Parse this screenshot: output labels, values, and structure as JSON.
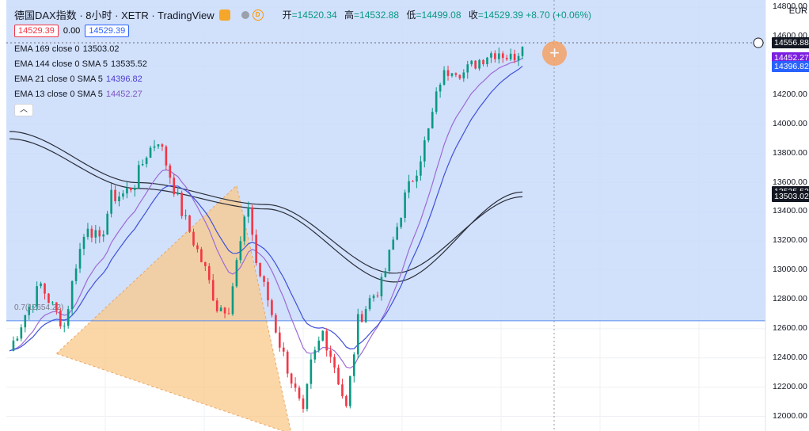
{
  "header": {
    "title": "德国DAX指数 · 8小时 · XETR · TradingView",
    "ohlc": {
      "open_label": "开",
      "open": "=14520.34",
      "high_label": "高",
      "high": "=14532.88",
      "low_label": "低",
      "low": "=14499.08",
      "close_label": "收",
      "close": "=14529.39",
      "change": "+8.70 (+0.06%)"
    },
    "dot_d": "D"
  },
  "price_boxes": {
    "bid": "14529.39",
    "spread": "0.00",
    "ask": "14529.39"
  },
  "indicators": [
    {
      "label": "EMA 169 close 0",
      "value": "13503.02",
      "color": "#131722"
    },
    {
      "label": "EMA 144 close 0 SMA 5",
      "value": "13535.52",
      "color": "#131722"
    },
    {
      "label": "EMA 21 close 0 SMA 5",
      "value": "14396.82",
      "color": "#4c3ccf"
    },
    {
      "label": "EMA 13 close 0 SMA 5",
      "value": "14452.27",
      "color": "#7e57c2"
    }
  ],
  "collapse_icon": "chevron-up-icon",
  "currency": "EUR",
  "fib_label": "0.7(12654.22)",
  "price_tags": [
    {
      "value": "14556.88",
      "bg": "#131722",
      "fg": "#ffffff",
      "price": 14556.88
    },
    {
      "value": "14452.27",
      "bg": "#7b1fe0",
      "fg": "#ffffff",
      "price": 14452.27
    },
    {
      "value": "14396.82",
      "bg": "#2962ff",
      "fg": "#ffffff",
      "price": 14396.82
    },
    {
      "value": "13535.52",
      "bg": "#131722",
      "fg": "#ffffff",
      "price": 13535.52
    },
    {
      "value": "13503.02",
      "bg": "#131722",
      "fg": "#ffffff",
      "price": 13503.02
    }
  ],
  "colors": {
    "up": "#089981",
    "down": "#f23645",
    "zone": "#c9dafa",
    "triangle": "#f9c98a"
  },
  "chart_data": {
    "type": "candlestick",
    "title": "德国DAX指数 · 8小时 · XETR",
    "ylim": [
      11900,
      14850
    ],
    "yticks": [
      14800,
      14600,
      14400,
      14200,
      14000,
      13800,
      13600,
      13400,
      13200,
      13000,
      12800,
      12600,
      12400,
      12200,
      12000
    ],
    "candles_count": 100,
    "price_path": [
      [
        0,
        12450
      ],
      [
        4,
        12700
      ],
      [
        8,
        12900
      ],
      [
        11,
        12750
      ],
      [
        14,
        12620
      ],
      [
        17,
        13050
      ],
      [
        20,
        13320
      ],
      [
        23,
        13180
      ],
      [
        26,
        13500
      ],
      [
        29,
        13520
      ],
      [
        32,
        13600
      ],
      [
        35,
        13800
      ],
      [
        38,
        13900
      ],
      [
        41,
        13650
      ],
      [
        44,
        13400
      ],
      [
        47,
        13200
      ],
      [
        50,
        13000
      ],
      [
        53,
        12750
      ],
      [
        56,
        12750
      ],
      [
        58,
        13050
      ],
      [
        61,
        13450
      ],
      [
        63,
        13050
      ],
      [
        66,
        12800
      ],
      [
        69,
        12500
      ],
      [
        72,
        12250
      ],
      [
        75,
        12000
      ],
      [
        77,
        12350
      ],
      [
        80,
        12580
      ],
      [
        83,
        12350
      ],
      [
        86,
        12050
      ],
      [
        89,
        12650
      ],
      [
        92,
        12800
      ],
      [
        95,
        12900
      ],
      [
        98,
        13200
      ],
      [
        101,
        13500
      ],
      [
        104,
        13700
      ],
      [
        107,
        13950
      ],
      [
        110,
        14300
      ],
      [
        113,
        14400
      ],
      [
        116,
        14350
      ],
      [
        119,
        14420
      ],
      [
        122,
        14480
      ],
      [
        125,
        14500
      ],
      [
        128,
        14450
      ],
      [
        131,
        14530
      ]
    ],
    "ema_169": [
      [
        0,
        13950
      ],
      [
        30,
        13600
      ],
      [
        60,
        13450
      ],
      [
        90,
        12980
      ],
      [
        131,
        13503.02
      ]
    ],
    "ema_144": [
      [
        0,
        13900
      ],
      [
        30,
        13560
      ],
      [
        60,
        13420
      ],
      [
        90,
        12920
      ],
      [
        131,
        13535.52
      ]
    ],
    "ema_21_last": 14396.82,
    "ema_13_last": 14452.27,
    "highlight_zone": {
      "from": 12654.22,
      "to": 14850
    },
    "triangle_pattern": [
      [
        12,
        12430
      ],
      [
        58,
        13580
      ],
      [
        72,
        11880
      ]
    ],
    "fib_level": 12654.22,
    "last_price": 14529.39,
    "crosshair_price": 14556.88
  }
}
